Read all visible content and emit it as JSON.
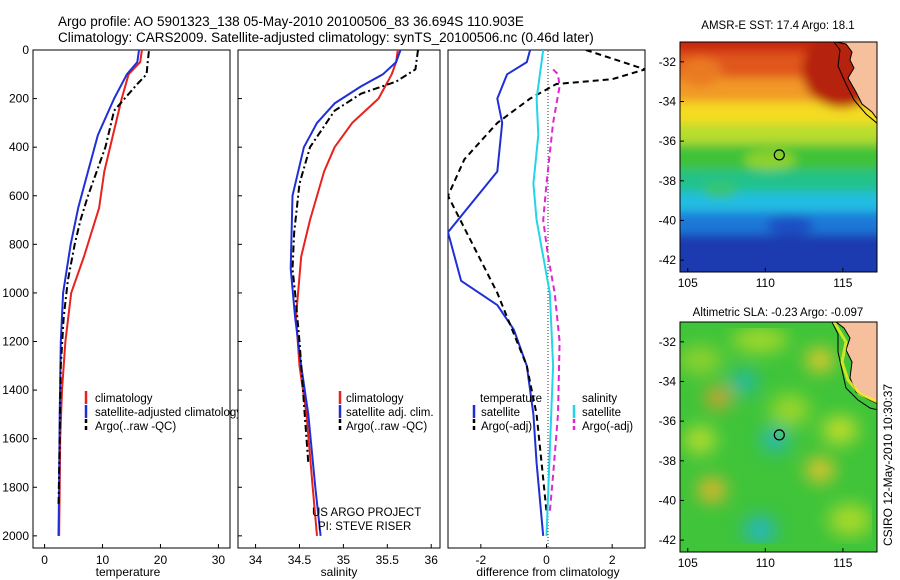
{
  "header": {
    "line1": "Argo profile: AO 5901323_138 05-May-2010 20100506_83 36.694S 110.903E",
    "line2": "Climatology: CARS2009. Satellite-adjusted climatology: synTS_20100506.nc (0.46d later)"
  },
  "stamp": "CSIRO 12-May-2010 10:30:37",
  "colors": {
    "climatology": "#e8221c",
    "satellite": "#1f2fd6",
    "argo": "#000000",
    "satellite_salinity": "#22d6e8",
    "argo_salinity": "#e025d6"
  },
  "chart_data": [
    {
      "type": "line",
      "xlabel": "temperature",
      "xlim": [
        -2,
        32
      ],
      "ylim": [
        2050,
        0
      ],
      "xticks": [
        "0",
        "10",
        "20",
        "30"
      ],
      "yticks": [
        "0",
        "200",
        "400",
        "600",
        "800",
        "1000",
        "1200",
        "1400",
        "1600",
        "1800",
        "2000"
      ],
      "legend": [
        "climatology",
        "satellite-adjusted climatology",
        "Argo(..raw -QC)"
      ],
      "series": [
        {
          "name": "climatology",
          "color": "#e8221c",
          "style": "solid",
          "x": [
            16.8,
            16.5,
            14.5,
            13.3,
            11.8,
            10.3,
            9.4,
            6.8,
            4.6,
            3.6,
            3.0,
            2.7,
            2.6,
            2.5
          ],
          "y": [
            0,
            50,
            100,
            200,
            350,
            500,
            650,
            850,
            1000,
            1200,
            1400,
            1600,
            1800,
            2000
          ]
        },
        {
          "name": "satellite-adjusted climatology",
          "color": "#1f2fd6",
          "style": "solid",
          "x": [
            16.3,
            16.0,
            14.2,
            12.0,
            9.2,
            7.5,
            5.8,
            4.5,
            3.2,
            2.8,
            2.6,
            2.5,
            2.4
          ],
          "y": [
            0,
            50,
            100,
            200,
            350,
            500,
            650,
            800,
            1000,
            1200,
            1500,
            1800,
            2000
          ]
        },
        {
          "name": "Argo(..raw -QC)",
          "color": "#000000",
          "style": "dashdot",
          "x": [
            18.0,
            17.8,
            17.6,
            16.0,
            12.0,
            10.5,
            7.5,
            6.2,
            5.2,
            4.0,
            3.3,
            2.8,
            2.6,
            2.4
          ],
          "y": [
            5,
            50,
            100,
            140,
            250,
            400,
            600,
            700,
            800,
            950,
            1100,
            1300,
            1600,
            1880
          ]
        }
      ]
    },
    {
      "type": "line",
      "xlabel": "salinity",
      "xlim": [
        33.8,
        36.1
      ],
      "ylim": [
        2050,
        0
      ],
      "xticks": [
        "34",
        "34.5",
        "35",
        "35.5",
        "36"
      ],
      "legend": [
        "climatology",
        "satellite adj. clim.",
        "Argo(..raw -QC)"
      ],
      "annotation": [
        "US ARGO PROJECT",
        "PI: STEVE RISER"
      ],
      "series": [
        {
          "name": "climatology",
          "color": "#e8221c",
          "style": "solid",
          "x": [
            35.62,
            35.6,
            35.55,
            35.4,
            35.1,
            34.9,
            34.78,
            34.62,
            34.52,
            34.46,
            34.5,
            34.58,
            34.65,
            34.7
          ],
          "y": [
            0,
            50,
            100,
            200,
            300,
            400,
            500,
            700,
            850,
            1100,
            1300,
            1500,
            1800,
            2000
          ]
        },
        {
          "name": "satellite adj. clim.",
          "color": "#1f2fd6",
          "style": "solid",
          "x": [
            35.65,
            35.6,
            35.45,
            35.2,
            34.9,
            34.7,
            34.55,
            34.42,
            34.4,
            34.45,
            34.52,
            34.6,
            34.68,
            34.74
          ],
          "y": [
            0,
            50,
            100,
            150,
            220,
            300,
            400,
            600,
            900,
            1100,
            1300,
            1500,
            1800,
            2000
          ]
        },
        {
          "name": "Argo(..raw -QC)",
          "color": "#000000",
          "style": "dashdot",
          "x": [
            35.85,
            35.82,
            35.6,
            35.2,
            34.9,
            34.62,
            34.5,
            34.44,
            34.42,
            34.45,
            34.5,
            34.56,
            34.6
          ],
          "y": [
            0,
            80,
            130,
            180,
            250,
            400,
            550,
            750,
            900,
            1000,
            1200,
            1500,
            1700
          ]
        }
      ]
    },
    {
      "type": "line",
      "xlabel": "difference from climatology",
      "xlim": [
        -3,
        3
      ],
      "ylim": [
        2050,
        0
      ],
      "xticks": [
        "-2",
        "0",
        "2"
      ],
      "legend": [
        "temperature",
        "satellite",
        "Argo(-adj)",
        "salinity",
        "satellite",
        "Argo(-adj)"
      ],
      "series": [
        {
          "name": "temperature satellite",
          "color": "#1f2fd6",
          "style": "solid",
          "x": [
            -0.5,
            -0.6,
            -1.2,
            -1.5,
            -1.35,
            -1.5,
            -3.0,
            -2.6,
            -1.5,
            -1.0,
            -0.6,
            -0.4,
            -0.3,
            -0.2,
            -0.1
          ],
          "y": [
            0,
            50,
            100,
            200,
            300,
            500,
            750,
            950,
            1050,
            1150,
            1300,
            1500,
            1700,
            1850,
            2000
          ]
        },
        {
          "name": "temperature Argo(-adj)",
          "color": "#000000",
          "style": "dashed",
          "x": [
            1.2,
            3.0,
            2.0,
            0.3,
            -0.5,
            -1.5,
            -2.5,
            -3.0,
            -1.5,
            -0.6,
            -0.3,
            -0.15,
            0.0
          ],
          "y": [
            0,
            80,
            120,
            140,
            200,
            300,
            450,
            600,
            1000,
            1300,
            1500,
            1700,
            1900
          ]
        },
        {
          "name": "salinity satellite",
          "color": "#22d6e8",
          "style": "solid",
          "x": [
            -0.1,
            -0.2,
            -0.3,
            -0.25,
            -0.4,
            -0.3,
            -0.1,
            0.1,
            0.2,
            0.1,
            0.0
          ],
          "y": [
            0,
            100,
            200,
            350,
            550,
            700,
            850,
            1000,
            1300,
            1650,
            2000
          ]
        },
        {
          "name": "salinity Argo(-adj)",
          "color": "#e025d6",
          "style": "dashed",
          "x": [
            0.2,
            0.35,
            0.4,
            0.2,
            0.0,
            -0.1,
            0.05,
            0.25,
            0.4,
            0.35,
            0.2,
            0.1
          ],
          "y": [
            80,
            100,
            150,
            300,
            550,
            700,
            850,
            1000,
            1200,
            1500,
            1750,
            1900
          ]
        }
      ]
    },
    {
      "type": "heatmap",
      "title": "AMSR-E SST: 17.4 Argo: 18.1",
      "xlim": [
        104.5,
        117.2
      ],
      "ylim": [
        -42.6,
        -31.0
      ],
      "xticks": [
        "105",
        "110",
        "115"
      ],
      "yticks": [
        "-32",
        "-34",
        "-36",
        "-38",
        "-40",
        "-42"
      ],
      "marker": {
        "lon": 110.903,
        "lat": -36.694
      }
    },
    {
      "type": "heatmap",
      "title": "Altimetric SLA: -0.23 Argo: -0.097",
      "xlim": [
        104.5,
        117.2
      ],
      "ylim": [
        -42.6,
        -31.0
      ],
      "xticks": [
        "105",
        "110",
        "115"
      ],
      "yticks": [
        "-32",
        "-34",
        "-36",
        "-38",
        "-40",
        "-42"
      ],
      "marker": {
        "lon": 110.903,
        "lat": -36.694
      }
    }
  ]
}
